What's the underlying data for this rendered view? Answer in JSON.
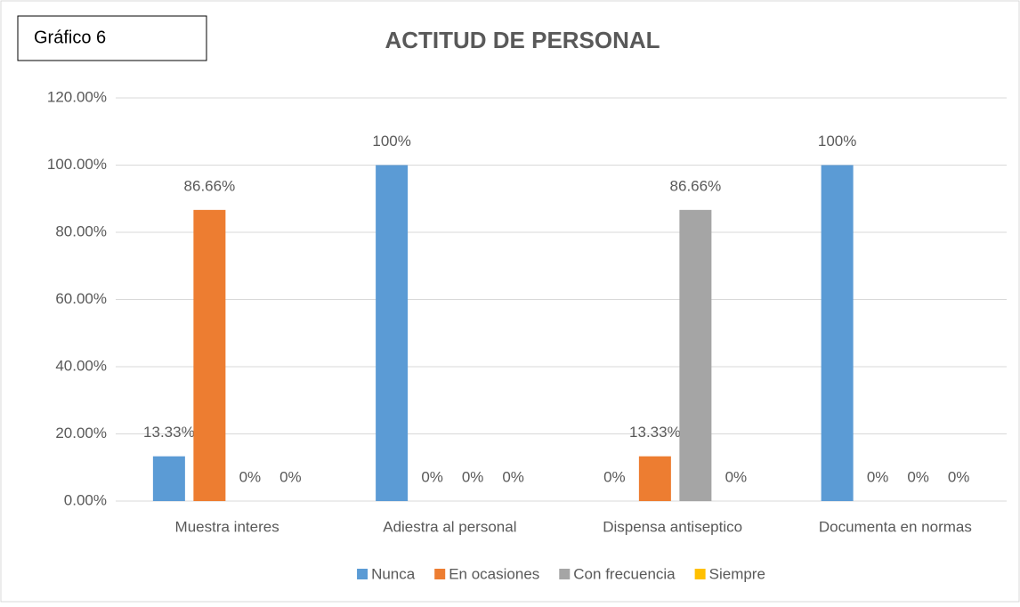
{
  "chart_data": {
    "type": "bar",
    "title": "ACTITUD DE PERSONAL",
    "annotation": "Gráfico 6",
    "categories": [
      "Muestra interes",
      "Adiestra al personal",
      "Dispensa antiseptico",
      "Documenta en normas"
    ],
    "series": [
      {
        "name": "Nunca",
        "color": "#5b9bd5",
        "values": [
          13.33,
          100,
          0,
          100
        ],
        "value_labels": [
          "13.33%",
          "100%",
          "0%",
          "100%"
        ]
      },
      {
        "name": "En ocasiones",
        "color": "#ed7d31",
        "values": [
          86.66,
          0,
          13.33,
          0
        ],
        "value_labels": [
          "86.66%",
          "0%",
          "13.33%",
          "0%"
        ]
      },
      {
        "name": "Con frecuencia",
        "color": "#a5a5a5",
        "values": [
          0,
          0,
          86.66,
          0
        ],
        "value_labels": [
          "0%",
          "0%",
          "86.66%",
          "0%"
        ]
      },
      {
        "name": "Siempre",
        "color": "#ffc000",
        "values": [
          0,
          0,
          0,
          0
        ],
        "value_labels": [
          "0%",
          "0%",
          "0%",
          "0%"
        ]
      }
    ],
    "ylim": [
      0,
      120
    ],
    "yticks": [
      {
        "value": 0,
        "label": "0.00%"
      },
      {
        "value": 20,
        "label": "20.00%"
      },
      {
        "value": 40,
        "label": "40.00%"
      },
      {
        "value": 60,
        "label": "60.00%"
      },
      {
        "value": 80,
        "label": "80.00%"
      },
      {
        "value": 100,
        "label": "100.00%"
      },
      {
        "value": 120,
        "label": "120.00%"
      }
    ],
    "grid": true,
    "legend": "bottom"
  }
}
